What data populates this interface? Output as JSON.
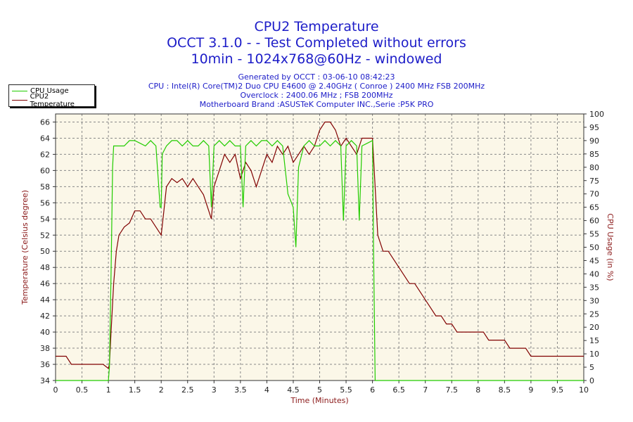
{
  "title": {
    "line1": "CPU2 Temperature",
    "line2": "OCCT 3.1.0 -  - Test Completed without errors",
    "line3": "10min - 1024x768@60Hz - windowed"
  },
  "info": {
    "generated": "Generated by OCCT : 03-06-10 08:42:23",
    "cpu": "CPU : Intel(R) Core(TM)2 Duo CPU E4600 @ 2.40GHz ( Conroe ) 2400 MHz FSB 200MHz",
    "overclock": "Overclock : 2400.06 MHz ; FSB 200MHz",
    "motherboard": "Motherboard Brand :ASUSTeK Computer INC.,Serie :P5K PRO"
  },
  "legend": {
    "cpu_usage": "CPU Usage",
    "cpu2_temp": "CPU2 Temperature"
  },
  "colors": {
    "usage": "#22cc00",
    "temperature": "#800000",
    "plot_bg": "#fbf7e8",
    "grid": "#888888",
    "title": "#1c1cc8",
    "axis_label": "#8b1a1a"
  },
  "chart_data": {
    "type": "line",
    "xlabel": "Time (Minutes)",
    "ylabel_left": "Temperature (Celsius degree)",
    "ylabel_right": "CPU Usage (in %)",
    "xlim": [
      0,
      10
    ],
    "ylim_left": [
      34,
      67
    ],
    "ylim_right": [
      0,
      100
    ],
    "x_ticks": [
      "0",
      "0.5",
      "1",
      "1.5",
      "2",
      "2.5",
      "3",
      "3.5",
      "4",
      "4.5",
      "5",
      "5.5",
      "6",
      "6.5",
      "7",
      "7.5",
      "8",
      "8.5",
      "9",
      "9.5",
      "10"
    ],
    "y_left_ticks": [
      34,
      36,
      38,
      40,
      42,
      44,
      46,
      48,
      50,
      52,
      54,
      56,
      58,
      60,
      62,
      64,
      66
    ],
    "y_right_ticks": [
      0,
      5,
      10,
      15,
      20,
      25,
      30,
      35,
      40,
      45,
      50,
      55,
      60,
      65,
      70,
      75,
      80,
      85,
      90,
      95,
      100
    ],
    "series": [
      {
        "name": "CPU2 Temperature",
        "axis": "left",
        "x": [
          0,
          0.1,
          0.2,
          0.3,
          0.4,
          0.5,
          0.6,
          0.7,
          0.8,
          0.9,
          1.0,
          1.02,
          1.05,
          1.1,
          1.15,
          1.2,
          1.3,
          1.4,
          1.5,
          1.6,
          1.7,
          1.8,
          1.9,
          2.0,
          2.05,
          2.1,
          2.2,
          2.3,
          2.4,
          2.5,
          2.6,
          2.7,
          2.8,
          2.9,
          2.95,
          3.0,
          3.1,
          3.2,
          3.3,
          3.4,
          3.5,
          3.6,
          3.7,
          3.8,
          3.9,
          4.0,
          4.1,
          4.2,
          4.3,
          4.4,
          4.5,
          4.6,
          4.7,
          4.8,
          4.9,
          5.0,
          5.1,
          5.2,
          5.3,
          5.4,
          5.5,
          5.6,
          5.7,
          5.8,
          5.9,
          6.0,
          6.1,
          6.2,
          6.3,
          6.4,
          6.5,
          6.6,
          6.7,
          6.8,
          6.9,
          7.0,
          7.1,
          7.2,
          7.3,
          7.4,
          7.5,
          7.6,
          7.7,
          7.8,
          7.9,
          8.0,
          8.1,
          8.2,
          8.3,
          8.4,
          8.5,
          8.6,
          8.7,
          8.8,
          8.9,
          9.0,
          9.1,
          9.2,
          9.3,
          9.4,
          9.5,
          9.6,
          9.7,
          9.8,
          9.9,
          10.0
        ],
        "values": [
          37,
          37,
          37,
          36,
          36,
          36,
          36,
          36,
          36,
          36,
          35.5,
          36,
          40,
          46,
          50,
          52,
          53,
          53.5,
          55,
          55,
          54,
          54,
          53,
          52,
          55,
          58,
          59,
          58.5,
          59,
          58,
          59,
          58,
          57,
          55,
          54,
          58,
          60,
          62,
          61,
          62,
          59,
          61,
          60,
          58,
          60,
          62,
          61,
          63,
          62,
          63,
          61,
          62,
          63,
          62,
          63,
          65,
          66,
          66,
          65,
          63,
          64,
          63,
          62,
          64,
          64,
          64,
          52,
          50,
          50,
          49,
          48,
          47,
          46,
          46,
          45,
          44,
          43,
          42,
          42,
          41,
          41,
          40,
          40,
          40,
          40,
          40,
          40,
          39,
          39,
          39,
          39,
          38,
          38,
          38,
          38,
          37,
          37,
          37,
          37,
          37,
          37,
          37,
          37,
          37,
          37,
          37
        ]
      },
      {
        "name": "CPU Usage",
        "axis": "right",
        "x": [
          0,
          0.5,
          1.0,
          1.02,
          1.05,
          1.08,
          1.1,
          1.2,
          1.3,
          1.4,
          1.5,
          1.6,
          1.7,
          1.8,
          1.9,
          1.98,
          2.0,
          2.02,
          2.1,
          2.2,
          2.3,
          2.4,
          2.5,
          2.6,
          2.7,
          2.8,
          2.9,
          2.95,
          3.0,
          3.1,
          3.2,
          3.3,
          3.4,
          3.5,
          3.55,
          3.6,
          3.7,
          3.8,
          3.9,
          4.0,
          4.1,
          4.2,
          4.3,
          4.4,
          4.5,
          4.55,
          4.6,
          4.7,
          4.8,
          4.9,
          5.0,
          5.1,
          5.2,
          5.3,
          5.4,
          5.45,
          5.5,
          5.6,
          5.7,
          5.75,
          5.8,
          5.9,
          6.0,
          6.02,
          6.05,
          6.1,
          10.0
        ],
        "values": [
          0,
          0,
          0,
          5,
          40,
          80,
          88,
          88,
          88,
          90,
          90,
          89,
          88,
          90,
          88,
          65,
          65,
          85,
          88,
          90,
          90,
          88,
          90,
          88,
          88,
          90,
          88,
          65,
          88,
          90,
          88,
          90,
          88,
          88,
          65,
          88,
          90,
          88,
          90,
          90,
          88,
          90,
          88,
          70,
          65,
          50,
          80,
          88,
          90,
          88,
          88,
          90,
          88,
          90,
          88,
          60,
          88,
          90,
          88,
          60,
          88,
          89,
          90,
          50,
          0,
          0,
          0
        ]
      }
    ]
  }
}
